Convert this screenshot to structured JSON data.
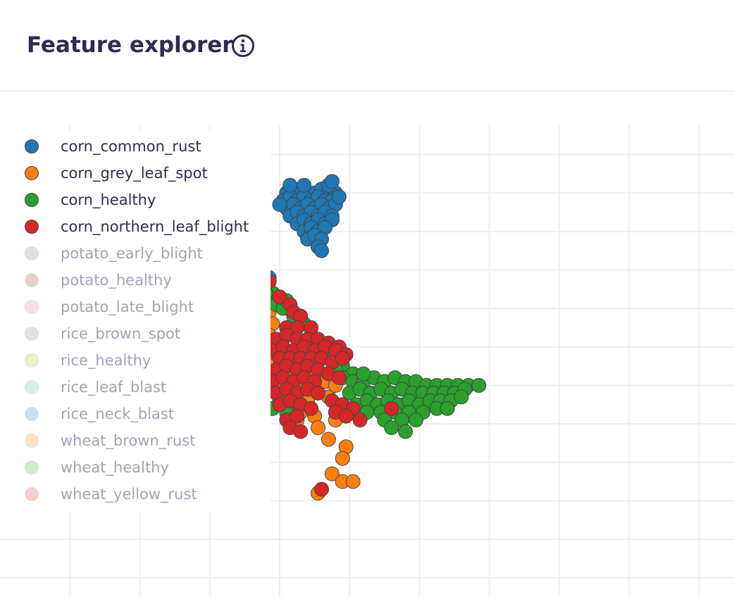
{
  "header": {
    "title": "Feature explorer",
    "info_icon": "info-circle-icon"
  },
  "chart_data": {
    "type": "scatter",
    "title": "",
    "xlabel": "",
    "ylabel": "",
    "grid": true,
    "legend_placement": "left",
    "xlim": [
      -0.6,
      1.5
    ],
    "ylim": [
      -0.35,
      0.96
    ],
    "series": [
      {
        "name": "corn_common_rust",
        "color": "#1f77b4",
        "visible": true,
        "points": [
          [
            0.22,
            0.7
          ],
          [
            0.24,
            0.71
          ],
          [
            0.26,
            0.7
          ],
          [
            0.28,
            0.7
          ],
          [
            0.3,
            0.7
          ],
          [
            0.32,
            0.71
          ],
          [
            0.34,
            0.7
          ],
          [
            0.36,
            0.7
          ],
          [
            0.21,
            0.68
          ],
          [
            0.23,
            0.69
          ],
          [
            0.25,
            0.68
          ],
          [
            0.27,
            0.69
          ],
          [
            0.29,
            0.68
          ],
          [
            0.31,
            0.69
          ],
          [
            0.33,
            0.68
          ],
          [
            0.35,
            0.68
          ],
          [
            0.22,
            0.66
          ],
          [
            0.24,
            0.67
          ],
          [
            0.26,
            0.66
          ],
          [
            0.28,
            0.67
          ],
          [
            0.3,
            0.66
          ],
          [
            0.32,
            0.67
          ],
          [
            0.34,
            0.66
          ],
          [
            0.36,
            0.67
          ],
          [
            0.23,
            0.64
          ],
          [
            0.25,
            0.65
          ],
          [
            0.27,
            0.64
          ],
          [
            0.29,
            0.65
          ],
          [
            0.31,
            0.64
          ],
          [
            0.33,
            0.65
          ],
          [
            0.35,
            0.64
          ],
          [
            0.25,
            0.62
          ],
          [
            0.27,
            0.63
          ],
          [
            0.29,
            0.62
          ],
          [
            0.31,
            0.63
          ],
          [
            0.33,
            0.62
          ],
          [
            0.35,
            0.63
          ],
          [
            0.27,
            0.6
          ],
          [
            0.29,
            0.61
          ],
          [
            0.31,
            0.6
          ],
          [
            0.33,
            0.61
          ],
          [
            0.28,
            0.58
          ],
          [
            0.3,
            0.59
          ],
          [
            0.32,
            0.58
          ],
          [
            0.31,
            0.56
          ],
          [
            0.32,
            0.55
          ],
          [
            0.34,
            0.72
          ],
          [
            0.35,
            0.73
          ],
          [
            0.37,
            0.69
          ],
          [
            0.2,
            0.67
          ],
          [
            0.23,
            0.72
          ],
          [
            0.27,
            0.72
          ],
          [
            0.17,
            0.48
          ]
        ]
      },
      {
        "name": "corn_grey_leaf_spot",
        "color": "#ff7f0e",
        "visible": true,
        "points": [
          [
            0.17,
            0.39
          ],
          [
            0.18,
            0.36
          ],
          [
            0.17,
            0.33
          ],
          [
            0.18,
            0.3
          ],
          [
            0.19,
            0.28
          ],
          [
            0.18,
            0.25
          ],
          [
            0.2,
            0.22
          ],
          [
            0.19,
            0.19
          ],
          [
            0.22,
            0.17
          ],
          [
            0.25,
            0.16
          ],
          [
            0.28,
            0.16
          ],
          [
            0.31,
            0.18
          ],
          [
            0.34,
            0.17
          ],
          [
            0.21,
            0.24
          ],
          [
            0.24,
            0.22
          ],
          [
            0.27,
            0.21
          ],
          [
            0.3,
            0.22
          ],
          [
            0.33,
            0.21
          ],
          [
            0.36,
            0.2
          ],
          [
            0.26,
            0.13
          ],
          [
            0.3,
            0.12
          ],
          [
            0.36,
            0.11
          ],
          [
            0.4,
            0.13
          ],
          [
            0.22,
            0.14
          ],
          [
            0.25,
            0.11
          ],
          [
            0.31,
            0.09
          ],
          [
            0.34,
            0.06
          ],
          [
            0.39,
            0.04
          ],
          [
            0.38,
            0.01
          ],
          [
            0.35,
            -0.03
          ],
          [
            0.38,
            -0.05
          ],
          [
            0.41,
            -0.05
          ],
          [
            0.31,
            -0.08
          ]
        ]
      },
      {
        "name": "corn_healthy",
        "color": "#2ca02c",
        "visible": true,
        "points": [
          [
            0.16,
            0.46
          ],
          [
            0.18,
            0.44
          ],
          [
            0.15,
            0.42
          ],
          [
            0.19,
            0.41
          ],
          [
            0.21,
            0.4
          ],
          [
            0.24,
            0.38
          ],
          [
            0.27,
            0.36
          ],
          [
            0.29,
            0.33
          ],
          [
            0.32,
            0.3
          ],
          [
            0.35,
            0.28
          ],
          [
            0.38,
            0.25
          ],
          [
            0.41,
            0.23
          ],
          [
            0.16,
            0.44
          ],
          [
            0.22,
            0.42
          ],
          [
            0.38,
            0.22
          ],
          [
            0.41,
            0.21
          ],
          [
            0.44,
            0.21
          ],
          [
            0.47,
            0.22
          ],
          [
            0.5,
            0.21
          ],
          [
            0.53,
            0.22
          ],
          [
            0.56,
            0.21
          ],
          [
            0.59,
            0.21
          ],
          [
            0.62,
            0.2
          ],
          [
            0.65,
            0.2
          ],
          [
            0.68,
            0.2
          ],
          [
            0.71,
            0.2
          ],
          [
            0.74,
            0.2
          ],
          [
            0.77,
            0.2
          ],
          [
            0.4,
            0.18
          ],
          [
            0.43,
            0.19
          ],
          [
            0.46,
            0.18
          ],
          [
            0.49,
            0.19
          ],
          [
            0.52,
            0.18
          ],
          [
            0.55,
            0.19
          ],
          [
            0.58,
            0.18
          ],
          [
            0.61,
            0.18
          ],
          [
            0.64,
            0.18
          ],
          [
            0.67,
            0.18
          ],
          [
            0.7,
            0.18
          ],
          [
            0.73,
            0.19
          ],
          [
            0.42,
            0.15
          ],
          [
            0.45,
            0.16
          ],
          [
            0.48,
            0.15
          ],
          [
            0.51,
            0.16
          ],
          [
            0.54,
            0.15
          ],
          [
            0.57,
            0.16
          ],
          [
            0.6,
            0.15
          ],
          [
            0.63,
            0.16
          ],
          [
            0.66,
            0.16
          ],
          [
            0.69,
            0.16
          ],
          [
            0.72,
            0.17
          ],
          [
            0.45,
            0.13
          ],
          [
            0.49,
            0.13
          ],
          [
            0.53,
            0.13
          ],
          [
            0.57,
            0.13
          ],
          [
            0.61,
            0.13
          ],
          [
            0.65,
            0.14
          ],
          [
            0.68,
            0.14
          ],
          [
            0.5,
            0.11
          ],
          [
            0.55,
            0.11
          ],
          [
            0.59,
            0.11
          ],
          [
            0.52,
            0.09
          ],
          [
            0.56,
            0.08
          ],
          [
            0.22,
            0.13
          ],
          [
            0.18,
            0.14
          ],
          [
            0.2,
            0.16
          ],
          [
            0.44,
            0.23
          ],
          [
            0.36,
            0.24
          ]
        ]
      },
      {
        "name": "corn_northern_leaf_blight",
        "color": "#d62728",
        "visible": true,
        "points": [
          [
            0.17,
            0.47
          ],
          [
            0.2,
            0.43
          ],
          [
            0.23,
            0.41
          ],
          [
            0.24,
            0.39
          ],
          [
            0.26,
            0.38
          ],
          [
            0.22,
            0.35
          ],
          [
            0.25,
            0.35
          ],
          [
            0.29,
            0.35
          ],
          [
            0.19,
            0.32
          ],
          [
            0.22,
            0.33
          ],
          [
            0.25,
            0.32
          ],
          [
            0.28,
            0.32
          ],
          [
            0.31,
            0.32
          ],
          [
            0.34,
            0.31
          ],
          [
            0.37,
            0.3
          ],
          [
            0.18,
            0.29
          ],
          [
            0.21,
            0.3
          ],
          [
            0.24,
            0.29
          ],
          [
            0.27,
            0.3
          ],
          [
            0.3,
            0.29
          ],
          [
            0.33,
            0.3
          ],
          [
            0.36,
            0.29
          ],
          [
            0.39,
            0.28
          ],
          [
            0.2,
            0.27
          ],
          [
            0.23,
            0.27
          ],
          [
            0.26,
            0.27
          ],
          [
            0.29,
            0.27
          ],
          [
            0.32,
            0.27
          ],
          [
            0.35,
            0.26
          ],
          [
            0.38,
            0.27
          ],
          [
            0.19,
            0.24
          ],
          [
            0.22,
            0.25
          ],
          [
            0.25,
            0.24
          ],
          [
            0.28,
            0.25
          ],
          [
            0.31,
            0.24
          ],
          [
            0.34,
            0.23
          ],
          [
            0.37,
            0.22
          ],
          [
            0.18,
            0.21
          ],
          [
            0.21,
            0.22
          ],
          [
            0.24,
            0.21
          ],
          [
            0.27,
            0.22
          ],
          [
            0.3,
            0.21
          ],
          [
            0.19,
            0.18
          ],
          [
            0.22,
            0.19
          ],
          [
            0.25,
            0.18
          ],
          [
            0.28,
            0.19
          ],
          [
            0.31,
            0.18
          ],
          [
            0.35,
            0.16
          ],
          [
            0.38,
            0.15
          ],
          [
            0.41,
            0.14
          ],
          [
            0.2,
            0.15
          ],
          [
            0.23,
            0.16
          ],
          [
            0.26,
            0.15
          ],
          [
            0.29,
            0.14
          ],
          [
            0.36,
            0.13
          ],
          [
            0.39,
            0.12
          ],
          [
            0.43,
            0.11
          ],
          [
            0.22,
            0.11
          ],
          [
            0.25,
            0.12
          ],
          [
            0.23,
            0.09
          ],
          [
            0.26,
            0.08
          ],
          [
            0.52,
            0.14
          ],
          [
            0.32,
            -0.07
          ]
        ]
      },
      {
        "name": "potato_early_blight",
        "color": "#c5b0d5",
        "visible": false,
        "points": []
      },
      {
        "name": "potato_healthy",
        "color": "#c49c94",
        "visible": false,
        "points": []
      },
      {
        "name": "potato_late_blight",
        "color": "#f7b6d2",
        "visible": false,
        "points": []
      },
      {
        "name": "rice_brown_spot",
        "color": "#bcbcbc",
        "visible": false,
        "points": []
      },
      {
        "name": "rice_healthy",
        "color": "#dbdb8d",
        "visible": false,
        "points": []
      },
      {
        "name": "rice_leaf_blast",
        "color": "#9edae5",
        "visible": false,
        "points": []
      },
      {
        "name": "rice_neck_blast",
        "color": "#90b4d6",
        "visible": false,
        "points": []
      },
      {
        "name": "wheat_brown_rust",
        "color": "#ffbb8a",
        "visible": false,
        "points": []
      },
      {
        "name": "wheat_healthy",
        "color": "#98d08e",
        "visible": false,
        "points": []
      },
      {
        "name": "wheat_yellow_rust",
        "color": "#f08f8e",
        "visible": false,
        "points": []
      }
    ]
  }
}
